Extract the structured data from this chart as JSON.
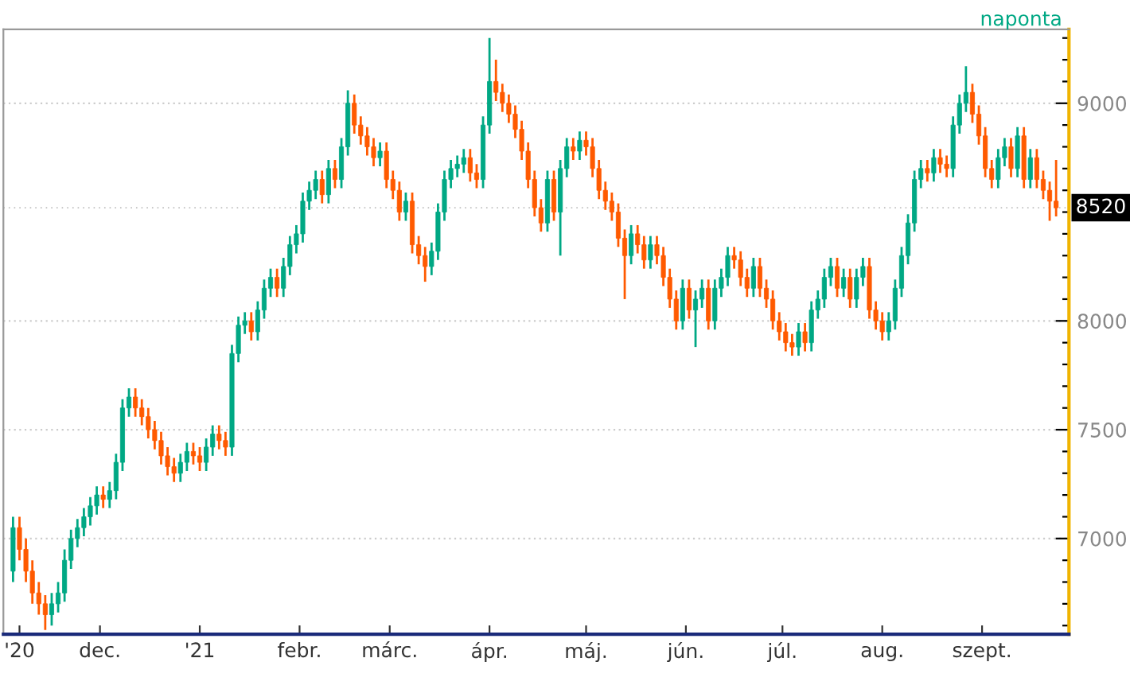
{
  "chart_data": {
    "type": "candlestick",
    "annotations": [
      "naponta"
    ],
    "x": [
      "2020-11-04",
      "2020-11-06",
      "2020-11-08",
      "2020-11-10",
      "2020-11-12",
      "2020-11-14",
      "2020-11-16",
      "2020-11-18",
      "2020-11-20",
      "2020-11-22",
      "2020-11-24",
      "2020-11-26",
      "2020-11-28",
      "2020-11-30",
      "2020-12-02",
      "2020-12-04",
      "2020-12-06",
      "2020-12-08",
      "2020-12-10",
      "2020-12-12",
      "2020-12-14",
      "2020-12-16",
      "2020-12-18",
      "2020-12-20",
      "2020-12-22",
      "2020-12-24",
      "2020-12-26",
      "2020-12-28",
      "2020-12-30",
      "2021-01-01",
      "2021-01-03",
      "2021-01-05",
      "2021-01-07",
      "2021-01-09",
      "2021-01-11",
      "2021-01-13",
      "2021-01-15",
      "2021-01-17",
      "2021-01-19",
      "2021-01-21",
      "2021-01-23",
      "2021-01-25",
      "2021-01-27",
      "2021-01-29",
      "2021-01-31",
      "2021-02-02",
      "2021-02-04",
      "2021-02-06",
      "2021-02-08",
      "2021-02-10",
      "2021-02-12",
      "2021-02-14",
      "2021-02-16",
      "2021-02-18",
      "2021-02-20",
      "2021-02-22",
      "2021-02-24",
      "2021-02-26",
      "2021-02-28",
      "2021-03-02",
      "2021-03-04",
      "2021-03-06",
      "2021-03-08",
      "2021-03-10",
      "2021-03-12",
      "2021-03-14",
      "2021-03-16",
      "2021-03-18",
      "2021-03-20",
      "2021-03-22",
      "2021-03-24",
      "2021-03-26",
      "2021-03-28",
      "2021-03-30",
      "2021-04-01",
      "2021-04-03",
      "2021-04-05",
      "2021-04-07",
      "2021-04-09",
      "2021-04-11",
      "2021-04-13",
      "2021-04-15",
      "2021-04-17",
      "2021-04-19",
      "2021-04-21",
      "2021-04-23",
      "2021-04-25",
      "2021-04-27",
      "2021-04-29",
      "2021-05-01",
      "2021-05-03",
      "2021-05-05",
      "2021-05-07",
      "2021-05-09",
      "2021-05-11",
      "2021-05-13",
      "2021-05-15",
      "2021-05-17",
      "2021-05-19",
      "2021-05-21",
      "2021-05-23",
      "2021-05-25",
      "2021-05-27",
      "2021-05-29",
      "2021-05-31",
      "2021-06-02",
      "2021-06-04",
      "2021-06-06",
      "2021-06-08",
      "2021-06-10",
      "2021-06-12",
      "2021-06-14",
      "2021-06-16",
      "2021-06-18",
      "2021-06-20",
      "2021-06-22",
      "2021-06-24",
      "2021-06-26",
      "2021-06-28",
      "2021-06-30",
      "2021-07-02",
      "2021-07-04",
      "2021-07-06",
      "2021-07-08",
      "2021-07-10",
      "2021-07-12",
      "2021-07-14",
      "2021-07-16",
      "2021-07-18",
      "2021-07-20",
      "2021-07-22",
      "2021-07-24",
      "2021-07-26",
      "2021-07-28",
      "2021-07-30",
      "2021-08-01",
      "2021-08-03",
      "2021-08-05",
      "2021-08-07",
      "2021-08-09",
      "2021-08-11",
      "2021-08-13",
      "2021-08-15",
      "2021-08-17",
      "2021-08-19",
      "2021-08-21",
      "2021-08-23",
      "2021-08-25",
      "2021-08-27",
      "2021-08-29",
      "2021-08-31",
      "2021-09-02",
      "2021-09-04",
      "2021-09-06",
      "2021-09-08",
      "2021-09-10",
      "2021-09-12",
      "2021-09-14",
      "2021-09-16",
      "2021-09-18",
      "2021-09-20",
      "2021-09-22",
      "2021-09-24"
    ],
    "ohlc": [
      [
        6850,
        7100,
        6800,
        7050
      ],
      [
        7050,
        7100,
        6900,
        6950
      ],
      [
        6950,
        7000,
        6800,
        6850
      ],
      [
        6850,
        6900,
        6700,
        6750
      ],
      [
        6750,
        6800,
        6650,
        6700
      ],
      [
        6700,
        6740,
        6580,
        6650
      ],
      [
        6650,
        6750,
        6600,
        6700
      ],
      [
        6700,
        6800,
        6660,
        6750
      ],
      [
        6750,
        6950,
        6710,
        6900
      ],
      [
        6900,
        7040,
        6860,
        7000
      ],
      [
        7000,
        7090,
        6960,
        7050
      ],
      [
        7050,
        7140,
        7010,
        7100
      ],
      [
        7100,
        7190,
        7060,
        7150
      ],
      [
        7150,
        7240,
        7110,
        7200
      ],
      [
        7200,
        7240,
        7140,
        7180
      ],
      [
        7180,
        7260,
        7140,
        7220
      ],
      [
        7220,
        7390,
        7180,
        7350
      ],
      [
        7350,
        7640,
        7310,
        7600
      ],
      [
        7600,
        7690,
        7560,
        7650
      ],
      [
        7650,
        7690,
        7560,
        7600
      ],
      [
        7600,
        7640,
        7520,
        7560
      ],
      [
        7560,
        7600,
        7460,
        7500
      ],
      [
        7500,
        7540,
        7410,
        7450
      ],
      [
        7450,
        7490,
        7340,
        7380
      ],
      [
        7380,
        7420,
        7290,
        7330
      ],
      [
        7330,
        7370,
        7260,
        7300
      ],
      [
        7300,
        7390,
        7260,
        7350
      ],
      [
        7350,
        7440,
        7310,
        7400
      ],
      [
        7400,
        7440,
        7340,
        7380
      ],
      [
        7380,
        7420,
        7310,
        7350
      ],
      [
        7350,
        7460,
        7310,
        7420
      ],
      [
        7420,
        7520,
        7380,
        7480
      ],
      [
        7480,
        7520,
        7410,
        7450
      ],
      [
        7450,
        7490,
        7380,
        7420
      ],
      [
        7420,
        7890,
        7380,
        7850
      ],
      [
        7850,
        8020,
        7810,
        7980
      ],
      [
        7980,
        8040,
        7940,
        8000
      ],
      [
        8000,
        8040,
        7910,
        7950
      ],
      [
        7950,
        8090,
        7910,
        8050
      ],
      [
        8050,
        8190,
        8010,
        8150
      ],
      [
        8150,
        8240,
        8110,
        8200
      ],
      [
        8200,
        8240,
        8110,
        8150
      ],
      [
        8150,
        8290,
        8110,
        8250
      ],
      [
        8250,
        8390,
        8210,
        8350
      ],
      [
        8350,
        8440,
        8310,
        8400
      ],
      [
        8400,
        8590,
        8360,
        8550
      ],
      [
        8550,
        8640,
        8510,
        8600
      ],
      [
        8600,
        8690,
        8560,
        8650
      ],
      [
        8650,
        8690,
        8540,
        8580
      ],
      [
        8580,
        8740,
        8540,
        8700
      ],
      [
        8700,
        8740,
        8610,
        8650
      ],
      [
        8650,
        8840,
        8610,
        8800
      ],
      [
        8800,
        9060,
        8760,
        9000
      ],
      [
        9000,
        9040,
        8860,
        8900
      ],
      [
        8900,
        8940,
        8810,
        8850
      ],
      [
        8850,
        8890,
        8760,
        8800
      ],
      [
        8800,
        8840,
        8710,
        8750
      ],
      [
        8750,
        8820,
        8710,
        8780
      ],
      [
        8780,
        8820,
        8610,
        8650
      ],
      [
        8650,
        8690,
        8560,
        8600
      ],
      [
        8600,
        8640,
        8460,
        8500
      ],
      [
        8500,
        8590,
        8460,
        8550
      ],
      [
        8550,
        8590,
        8310,
        8350
      ],
      [
        8350,
        8390,
        8260,
        8300
      ],
      [
        8300,
        8340,
        8180,
        8250
      ],
      [
        8250,
        8360,
        8210,
        8320
      ],
      [
        8320,
        8540,
        8280,
        8500
      ],
      [
        8500,
        8690,
        8460,
        8650
      ],
      [
        8650,
        8740,
        8610,
        8700
      ],
      [
        8700,
        8760,
        8660,
        8720
      ],
      [
        8720,
        8790,
        8680,
        8750
      ],
      [
        8750,
        8790,
        8640,
        8680
      ],
      [
        8680,
        8720,
        8610,
        8650
      ],
      [
        8650,
        8940,
        8610,
        8900
      ],
      [
        8900,
        9300,
        8860,
        9100
      ],
      [
        9100,
        9200,
        9010,
        9050
      ],
      [
        9050,
        9090,
        8960,
        9000
      ],
      [
        9000,
        9040,
        8910,
        8950
      ],
      [
        8950,
        8990,
        8840,
        8880
      ],
      [
        8880,
        8920,
        8740,
        8780
      ],
      [
        8780,
        8820,
        8610,
        8650
      ],
      [
        8650,
        8690,
        8480,
        8520
      ],
      [
        8520,
        8560,
        8410,
        8450
      ],
      [
        8450,
        8690,
        8410,
        8650
      ],
      [
        8650,
        8690,
        8460,
        8500
      ],
      [
        8500,
        8740,
        8300,
        8700
      ],
      [
        8700,
        8840,
        8660,
        8800
      ],
      [
        8800,
        8840,
        8740,
        8780
      ],
      [
        8780,
        8870,
        8740,
        8830
      ],
      [
        8830,
        8870,
        8760,
        8800
      ],
      [
        8800,
        8840,
        8660,
        8700
      ],
      [
        8700,
        8740,
        8560,
        8600
      ],
      [
        8600,
        8640,
        8510,
        8550
      ],
      [
        8550,
        8590,
        8460,
        8500
      ],
      [
        8500,
        8540,
        8340,
        8380
      ],
      [
        8380,
        8420,
        8100,
        8300
      ],
      [
        8300,
        8440,
        8260,
        8400
      ],
      [
        8400,
        8440,
        8310,
        8350
      ],
      [
        8350,
        8390,
        8240,
        8280
      ],
      [
        8280,
        8390,
        8240,
        8350
      ],
      [
        8350,
        8390,
        8260,
        8300
      ],
      [
        8300,
        8340,
        8160,
        8200
      ],
      [
        8200,
        8240,
        8060,
        8100
      ],
      [
        8100,
        8140,
        7960,
        8000
      ],
      [
        8000,
        8190,
        7960,
        8150
      ],
      [
        8150,
        8190,
        8010,
        8050
      ],
      [
        8050,
        8140,
        7880,
        8100
      ],
      [
        8100,
        8190,
        8060,
        8150
      ],
      [
        8150,
        8190,
        7960,
        8000
      ],
      [
        8000,
        8190,
        7960,
        8150
      ],
      [
        8150,
        8240,
        8110,
        8200
      ],
      [
        8200,
        8340,
        8160,
        8300
      ],
      [
        8300,
        8340,
        8240,
        8280
      ],
      [
        8280,
        8320,
        8160,
        8200
      ],
      [
        8200,
        8240,
        8110,
        8150
      ],
      [
        8150,
        8290,
        8110,
        8250
      ],
      [
        8250,
        8290,
        8110,
        8150
      ],
      [
        8150,
        8190,
        8060,
        8100
      ],
      [
        8100,
        8140,
        7960,
        8000
      ],
      [
        8000,
        8040,
        7910,
        7950
      ],
      [
        7950,
        7990,
        7860,
        7900
      ],
      [
        7900,
        7940,
        7840,
        7880
      ],
      [
        7880,
        7990,
        7840,
        7950
      ],
      [
        7950,
        7990,
        7860,
        7900
      ],
      [
        7900,
        8090,
        7860,
        8050
      ],
      [
        8050,
        8140,
        8010,
        8100
      ],
      [
        8100,
        8240,
        8060,
        8200
      ],
      [
        8200,
        8290,
        8160,
        8250
      ],
      [
        8250,
        8290,
        8110,
        8150
      ],
      [
        8150,
        8240,
        8110,
        8200
      ],
      [
        8200,
        8240,
        8060,
        8100
      ],
      [
        8100,
        8240,
        8060,
        8200
      ],
      [
        8200,
        8290,
        8160,
        8250
      ],
      [
        8250,
        8290,
        8010,
        8050
      ],
      [
        8050,
        8090,
        7960,
        8000
      ],
      [
        8000,
        8040,
        7910,
        7950
      ],
      [
        7950,
        8040,
        7910,
        8000
      ],
      [
        8000,
        8190,
        7960,
        8150
      ],
      [
        8150,
        8340,
        8110,
        8300
      ],
      [
        8300,
        8490,
        8260,
        8450
      ],
      [
        8450,
        8690,
        8410,
        8650
      ],
      [
        8650,
        8740,
        8610,
        8700
      ],
      [
        8700,
        8740,
        8640,
        8680
      ],
      [
        8680,
        8790,
        8640,
        8750
      ],
      [
        8750,
        8790,
        8680,
        8720
      ],
      [
        8720,
        8760,
        8660,
        8700
      ],
      [
        8700,
        8940,
        8660,
        8900
      ],
      [
        8900,
        9040,
        8860,
        9000
      ],
      [
        9000,
        9170,
        8960,
        9050
      ],
      [
        9050,
        9090,
        8910,
        8950
      ],
      [
        8950,
        8990,
        8810,
        8850
      ],
      [
        8850,
        8890,
        8660,
        8700
      ],
      [
        8700,
        8740,
        8610,
        8650
      ],
      [
        8650,
        8790,
        8610,
        8750
      ],
      [
        8750,
        8840,
        8710,
        8800
      ],
      [
        8800,
        8840,
        8660,
        8700
      ],
      [
        8700,
        8890,
        8660,
        8850
      ],
      [
        8850,
        8890,
        8610,
        8650
      ],
      [
        8650,
        8790,
        8610,
        8750
      ],
      [
        8750,
        8790,
        8610,
        8650
      ],
      [
        8650,
        8690,
        8560,
        8600
      ],
      [
        8600,
        8640,
        8460,
        8550
      ],
      [
        8550,
        8740,
        8480,
        8520
      ]
    ],
    "colors": [
      "#00a884",
      "#ff5a00",
      "#ff5a00",
      "#ff5a00",
      "#ff5a00",
      "#ff5a00",
      "#00a884",
      "#00a884",
      "#00a884",
      "#00a884",
      "#00a884",
      "#00a884",
      "#00a884",
      "#00a884",
      "#ff5a00",
      "#00a884",
      "#00a884",
      "#00a884",
      "#00a884",
      "#ff5a00",
      "#ff5a00",
      "#ff5a00",
      "#ff5a00",
      "#ff5a00",
      "#ff5a00",
      "#ff5a00",
      "#00a884",
      "#00a884",
      "#ff5a00",
      "#ff5a00",
      "#00a884",
      "#00a884",
      "#ff5a00",
      "#ff5a00",
      "#00a884",
      "#00a884",
      "#00a884",
      "#ff5a00",
      "#00a884",
      "#00a884",
      "#00a884",
      "#ff5a00",
      "#00a884",
      "#00a884",
      "#00a884",
      "#00a884",
      "#00a884",
      "#00a884",
      "#ff5a00",
      "#00a884",
      "#ff5a00",
      "#00a884",
      "#00a884",
      "#ff5a00",
      "#ff5a00",
      "#ff5a00",
      "#ff5a00",
      "#00a884",
      "#ff5a00",
      "#ff5a00",
      "#ff5a00",
      "#00a884",
      "#ff5a00",
      "#ff5a00",
      "#ff5a00",
      "#00a884",
      "#00a884",
      "#00a884",
      "#00a884",
      "#00a884",
      "#00a884",
      "#ff5a00",
      "#ff5a00",
      "#00a884",
      "#00a884",
      "#ff5a00",
      "#ff5a00",
      "#ff5a00",
      "#ff5a00",
      "#ff5a00",
      "#ff5a00",
      "#ff5a00",
      "#ff5a00",
      "#00a884",
      "#ff5a00",
      "#00a884",
      "#00a884",
      "#ff5a00",
      "#00a884",
      "#ff5a00",
      "#ff5a00",
      "#ff5a00",
      "#ff5a00",
      "#ff5a00",
      "#ff5a00",
      "#ff5a00",
      "#00a884",
      "#ff5a00",
      "#ff5a00",
      "#00a884",
      "#ff5a00",
      "#ff5a00",
      "#ff5a00",
      "#ff5a00",
      "#00a884",
      "#ff5a00",
      "#00a884",
      "#00a884",
      "#ff5a00",
      "#00a884",
      "#00a884",
      "#00a884",
      "#ff5a00",
      "#ff5a00",
      "#ff5a00",
      "#00a884",
      "#ff5a00",
      "#ff5a00",
      "#ff5a00",
      "#ff5a00",
      "#ff5a00",
      "#ff5a00",
      "#00a884",
      "#ff5a00",
      "#00a884",
      "#00a884",
      "#00a884",
      "#00a884",
      "#ff5a00",
      "#00a884",
      "#ff5a00",
      "#00a884",
      "#00a884",
      "#ff5a00",
      "#ff5a00",
      "#ff5a00",
      "#00a884",
      "#00a884",
      "#00a884",
      "#00a884",
      "#00a884",
      "#00a884",
      "#ff5a00",
      "#00a884",
      "#ff5a00",
      "#ff5a00",
      "#00a884",
      "#00a884",
      "#00a884",
      "#ff5a00",
      "#ff5a00",
      "#ff5a00",
      "#ff5a00",
      "#00a884",
      "#00a884",
      "#ff5a00",
      "#00a884",
      "#ff5a00",
      "#00a884",
      "#ff5a00",
      "#ff5a00",
      "#ff5a00",
      "#ff5a00"
    ],
    "xlim": [
      "2020-11-01",
      "2021-09-28"
    ],
    "xticks": [
      {
        "value": "2020-11-06",
        "label": "'20"
      },
      {
        "value": "2020-12-01",
        "label": "dec."
      },
      {
        "value": "2021-01-01",
        "label": "'21"
      },
      {
        "value": "2021-02-01",
        "label": "febr."
      },
      {
        "value": "2021-03-01",
        "label": "márc."
      },
      {
        "value": "2021-04-01",
        "label": "ápr."
      },
      {
        "value": "2021-05-01",
        "label": "máj."
      },
      {
        "value": "2021-06-01",
        "label": "jún."
      },
      {
        "value": "2021-07-01",
        "label": "júl."
      },
      {
        "value": "2021-08-01",
        "label": "aug."
      },
      {
        "value": "2021-09-01",
        "label": "szept."
      }
    ],
    "ylim": [
      6560,
      9340
    ],
    "yticks": [
      {
        "value": 6600,
        "label": null
      },
      {
        "value": 6700,
        "label": null
      },
      {
        "value": 6800,
        "label": null
      },
      {
        "value": 6900,
        "label": null
      },
      7000,
      {
        "value": 7100,
        "label": null
      },
      {
        "value": 7200,
        "label": null
      },
      {
        "value": 7300,
        "label": null
      },
      {
        "value": 7400,
        "label": null
      },
      7500,
      {
        "value": 7600,
        "label": null
      },
      {
        "value": 7700,
        "label": null
      },
      {
        "value": 7800,
        "label": null
      },
      {
        "value": 7900,
        "label": null
      },
      8000,
      {
        "value": 8100,
        "label": null
      },
      {
        "value": 8200,
        "label": null
      },
      {
        "value": 8300,
        "label": null
      },
      {
        "value": 8400,
        "label": null
      },
      {
        "value": 8500,
        "label": null
      },
      {
        "value": 8600,
        "label": null
      },
      {
        "value": 8700,
        "label": null
      },
      {
        "value": 8800,
        "label": null
      },
      {
        "value": 8900,
        "label": null
      },
      9000,
      {
        "value": 9100,
        "label": null
      },
      {
        "value": 9200,
        "label": null
      },
      {
        "value": 9300,
        "label": null
      }
    ],
    "ref_lines": [
      {
        "axis": "y",
        "value": 8520,
        "label": "8520",
        "color": "#000000"
      }
    ],
    "grid": "y"
  }
}
